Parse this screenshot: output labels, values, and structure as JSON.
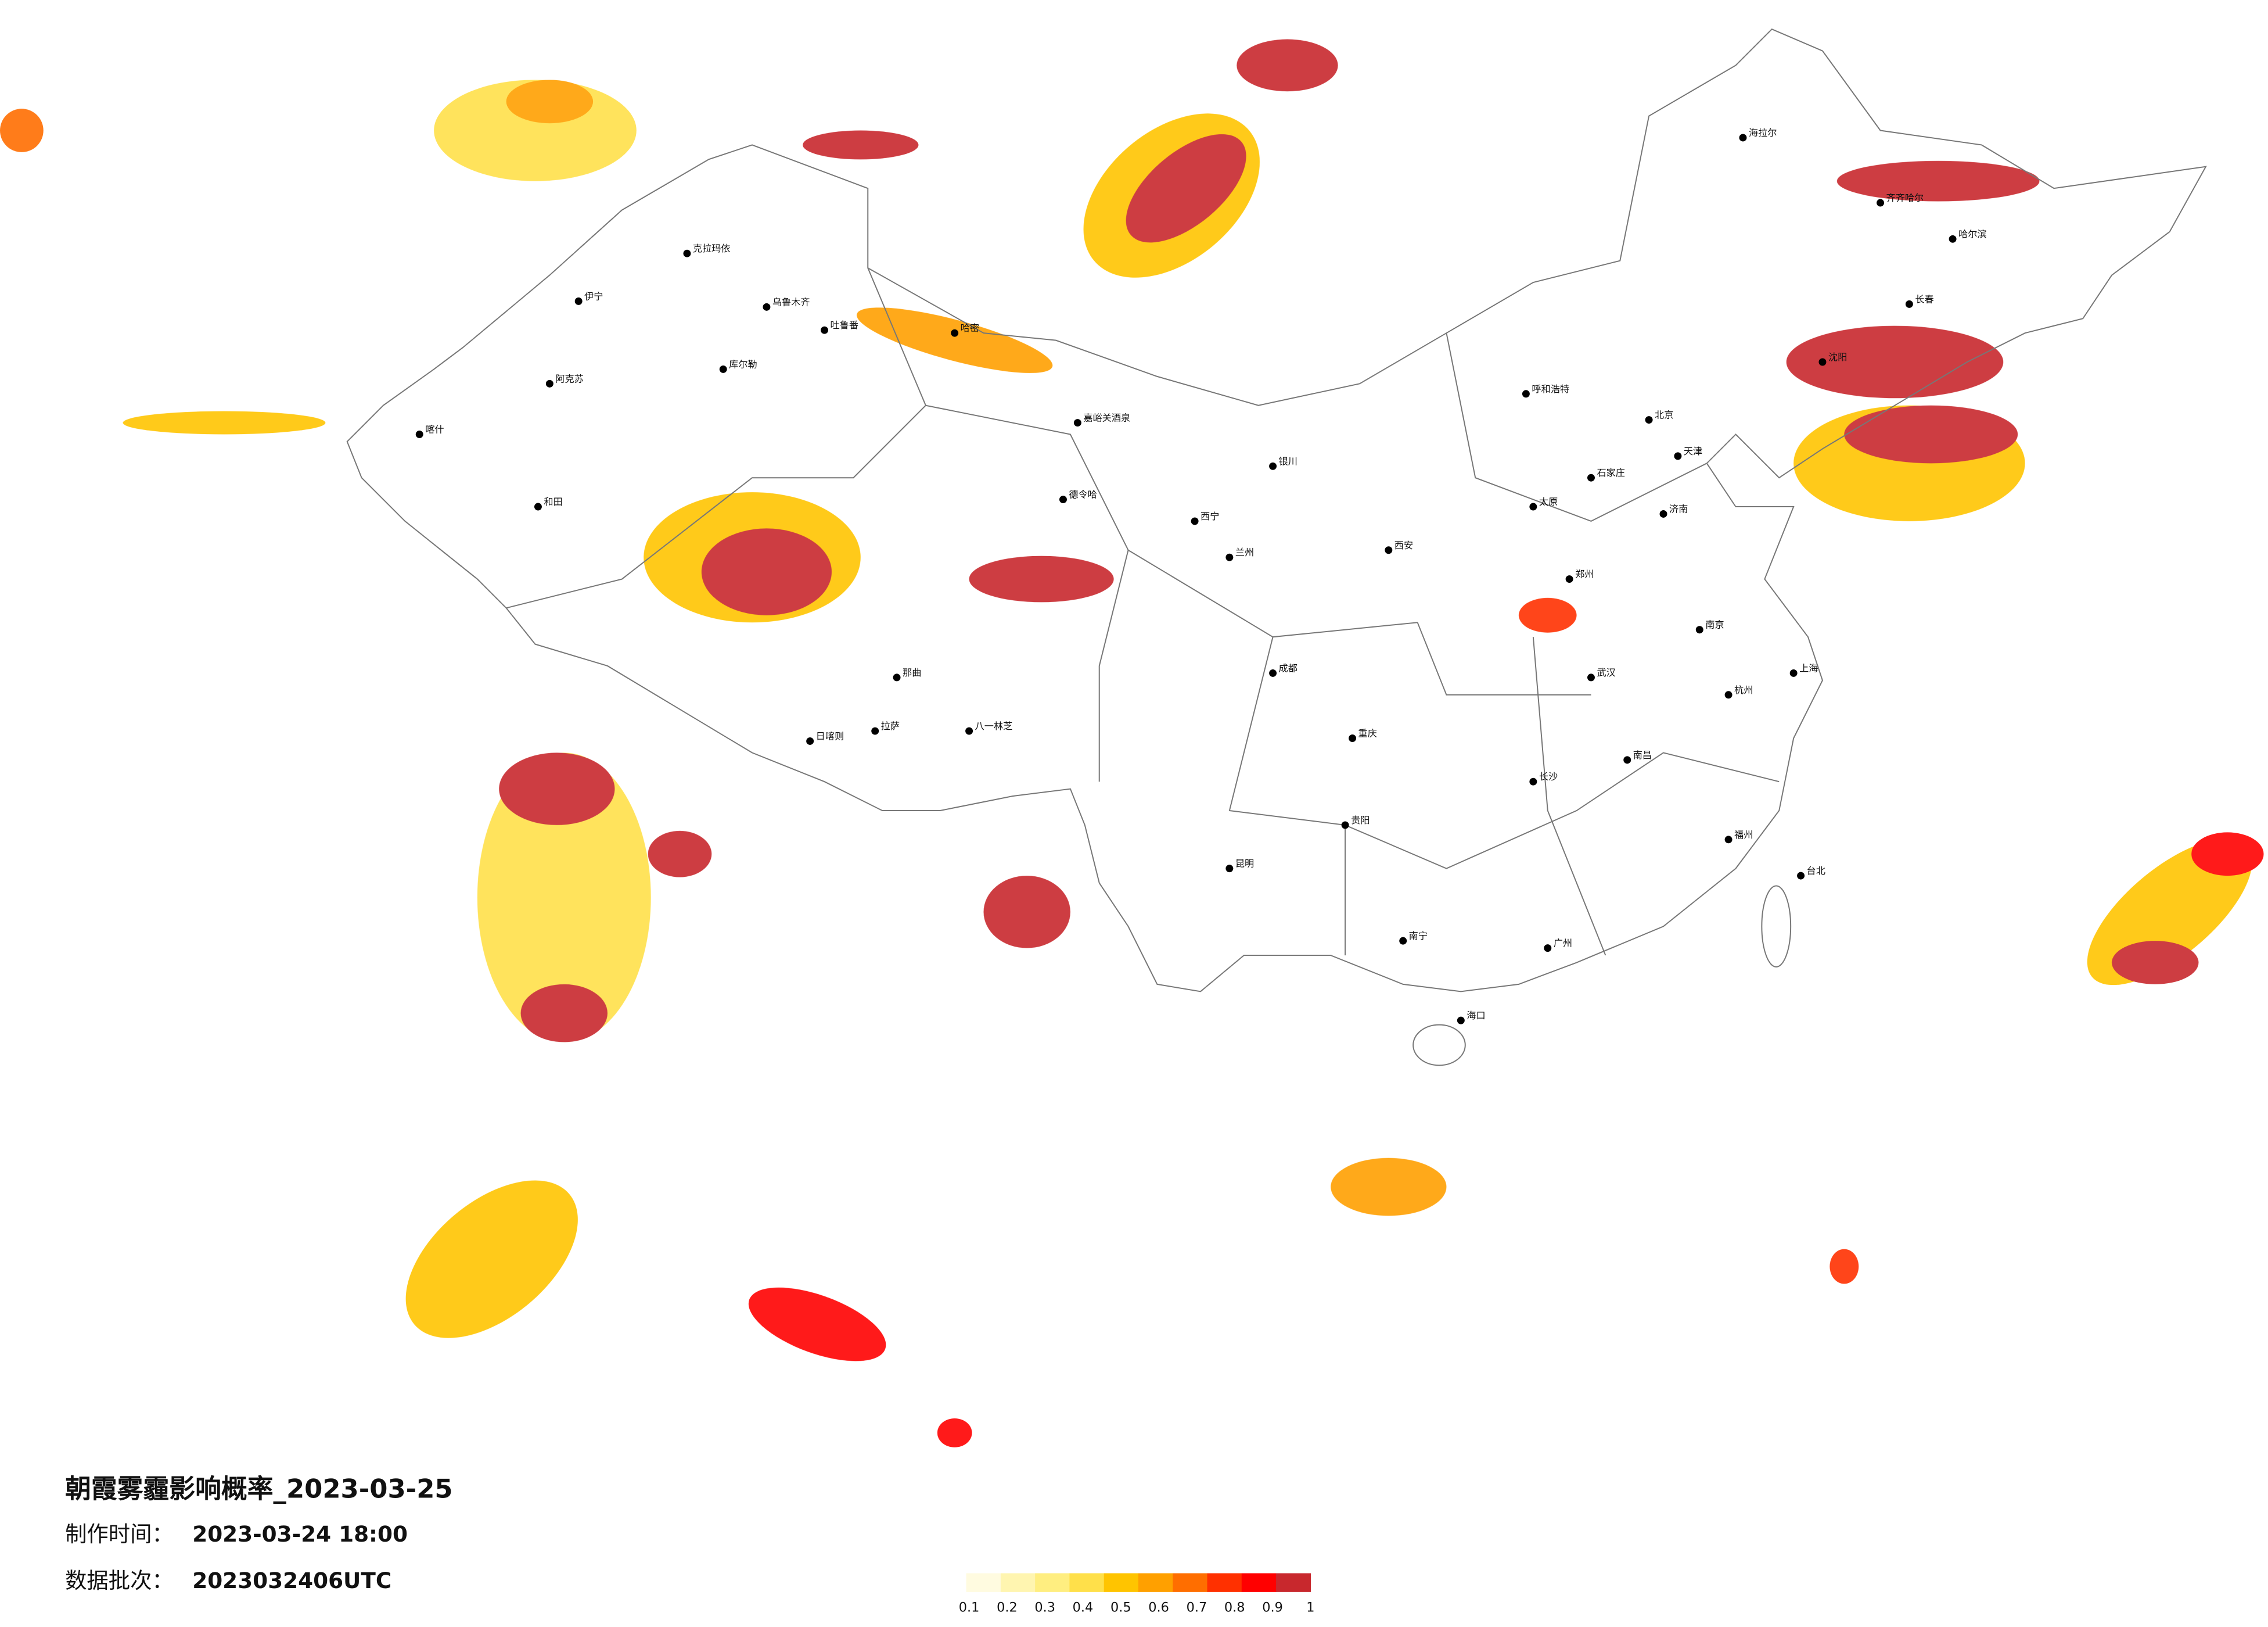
{
  "title": "朝霞雾霾影响概率_2023-03-25",
  "info": [
    {
      "label": "制作时间：",
      "value": "2023-03-24 18:00"
    },
    {
      "label": "数据批次：",
      "value": "2023032406UTC"
    }
  ],
  "legend": {
    "ticks": [
      0.1,
      0.2,
      0.3,
      0.4,
      0.5,
      0.6,
      0.7,
      0.8,
      0.9,
      1
    ],
    "colors": [
      "#fffbe0",
      "#fff5b0",
      "#ffee80",
      "#ffe04a",
      "#ffc400",
      "#ffa000",
      "#ff6e00",
      "#ff3000",
      "#ff0000",
      "#c8282d"
    ]
  },
  "cities": [
    "克拉玛依",
    "乌鲁木齐",
    "伊宁",
    "阿克苏",
    "库尔勒",
    "和田",
    "喀什",
    "吐鲁番",
    "哈密",
    "嘉峪关酒泉",
    "德令哈",
    "拉萨",
    "日喀则",
    "那曲",
    "八一林芝",
    "西宁",
    "兰州",
    "银川",
    "呼和浩特",
    "北京",
    "天津",
    "石家庄",
    "太原",
    "济南",
    "郑州",
    "西安",
    "成都",
    "重庆",
    "贵阳",
    "昆明",
    "南宁",
    "广州",
    "长沙",
    "武汉",
    "南昌",
    "杭州",
    "南京",
    "上海",
    "福州",
    "台北",
    "海口",
    "沈阳",
    "长春",
    "哈尔滨",
    "海拉尔",
    "齐齐哈尔"
  ]
}
